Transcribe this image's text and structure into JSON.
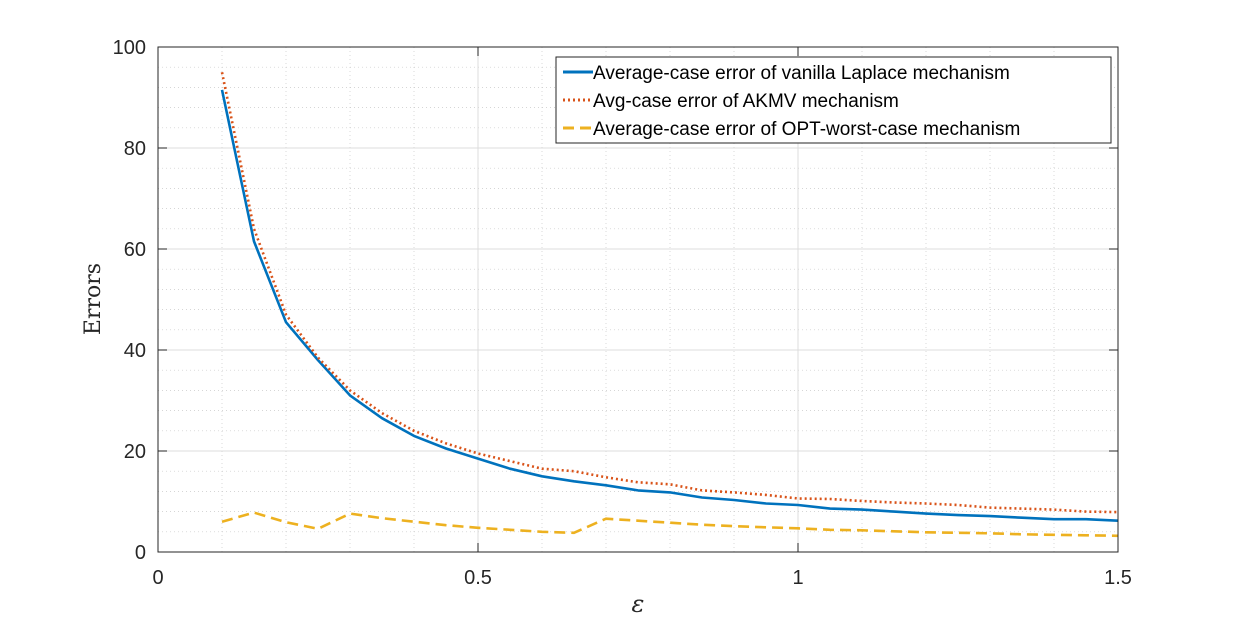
{
  "chart_data": {
    "type": "line",
    "title": "",
    "xlabel": "ε",
    "ylabel": "Errors",
    "xlim": [
      0,
      1.5
    ],
    "ylim": [
      0,
      100
    ],
    "xticks": [
      0,
      0.5,
      1,
      1.5
    ],
    "xtick_labels": [
      "0",
      "0.5",
      "1",
      "1.5"
    ],
    "yticks": [
      0,
      20,
      40,
      60,
      80,
      100
    ],
    "ytick_labels": [
      "0",
      "20",
      "40",
      "60",
      "80",
      "100"
    ],
    "grid": "major and minor, dotted",
    "legend_position": "top-right",
    "x": [
      0.1,
      0.15,
      0.2,
      0.25,
      0.3,
      0.35,
      0.4,
      0.45,
      0.5,
      0.55,
      0.6,
      0.65,
      0.7,
      0.75,
      0.8,
      0.85,
      0.9,
      0.95,
      1.0,
      1.05,
      1.1,
      1.15,
      1.2,
      1.25,
      1.3,
      1.35,
      1.4,
      1.45,
      1.5
    ],
    "series": [
      {
        "name": "Average-case error of vanilla Laplace mechanism",
        "color": "#0072BD",
        "style": "solid",
        "values": [
          91.5,
          61.5,
          45.5,
          38.0,
          31.0,
          26.5,
          23.0,
          20.5,
          18.5,
          16.5,
          15.0,
          14.0,
          13.2,
          12.2,
          11.8,
          10.8,
          10.3,
          9.6,
          9.3,
          8.6,
          8.4,
          8.0,
          7.6,
          7.3,
          7.1,
          6.8,
          6.5,
          6.5,
          6.2
        ]
      },
      {
        "name": "Avg-case error of AKMV mechanism",
        "color": "#D95319",
        "style": "dotted",
        "values": [
          95.0,
          64.0,
          47.0,
          38.5,
          32.0,
          27.5,
          24.0,
          21.5,
          19.5,
          18.0,
          16.5,
          16.0,
          14.8,
          13.8,
          13.4,
          12.2,
          11.8,
          11.3,
          10.6,
          10.5,
          10.1,
          9.8,
          9.6,
          9.3,
          8.8,
          8.6,
          8.4,
          8.0,
          7.9
        ]
      },
      {
        "name": "Average-case error of OPT-worst-case mechanism",
        "color": "#EDB120",
        "style": "dashed",
        "values": [
          6.0,
          7.8,
          5.9,
          4.6,
          7.6,
          6.7,
          6.0,
          5.3,
          4.8,
          4.4,
          4.0,
          3.8,
          6.6,
          6.2,
          5.8,
          5.4,
          5.1,
          4.9,
          4.7,
          4.4,
          4.3,
          4.1,
          3.9,
          3.8,
          3.7,
          3.5,
          3.4,
          3.3,
          3.2
        ]
      }
    ]
  }
}
